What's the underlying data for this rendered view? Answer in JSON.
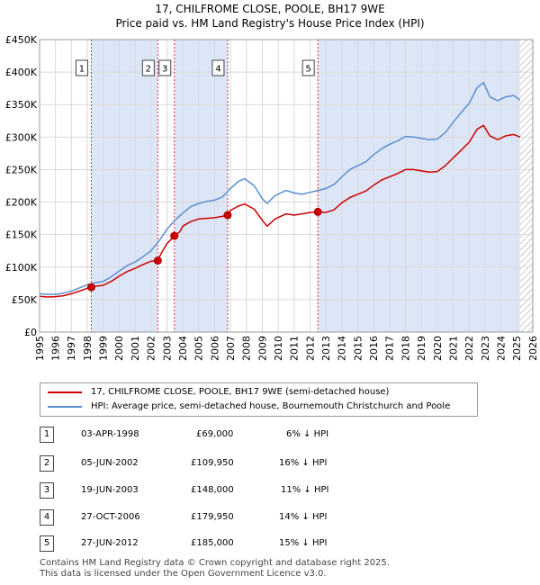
{
  "title_line1": "17, CHILFROME CLOSE, POOLE, BH17 9WE",
  "title_line2": "Price paid vs. HM Land Registry's House Price Index (HPI)",
  "legend": {
    "property_label": "17, CHILFROME CLOSE, POOLE, BH17 9WE (semi-detached house)",
    "hpi_label": "HPI: Average price, semi-detached house, Bournemouth Christchurch and Poole"
  },
  "colors": {
    "property": "#cc0000",
    "hpi": "#5b8fd1",
    "shade": "#dde6f7",
    "marker": "#cc0000",
    "vline": "#dd3333"
  },
  "sales": [
    {
      "num": "1",
      "date": "03-APR-1998",
      "price": "£69,000",
      "hpi_diff": "6% ↓ HPI"
    },
    {
      "num": "2",
      "date": "05-JUN-2002",
      "price": "£109,950",
      "hpi_diff": "16% ↓ HPI"
    },
    {
      "num": "3",
      "date": "19-JUN-2003",
      "price": "£148,000",
      "hpi_diff": "11% ↓ HPI"
    },
    {
      "num": "4",
      "date": "27-OCT-2006",
      "price": "£179,950",
      "hpi_diff": "14% ↓ HPI"
    },
    {
      "num": "5",
      "date": "27-JUN-2012",
      "price": "£185,000",
      "hpi_diff": "15% ↓ HPI"
    }
  ],
  "footer_line1": "Contains HM Land Registry data © Crown copyright and database right 2025.",
  "footer_line2": "This data is licensed under the Open Government Licence v3.0.",
  "chart_data": {
    "type": "line",
    "title": "17, CHILFROME CLOSE, POOLE, BH17 9WE — Price paid vs. HM Land Registry's House Price Index (HPI)",
    "xlabel": "",
    "ylabel": "",
    "xlim": [
      1995,
      2026
    ],
    "ylim": [
      0,
      450000
    ],
    "x_ticks": [
      1995,
      1996,
      1997,
      1998,
      1999,
      2000,
      2001,
      2002,
      2003,
      2004,
      2005,
      2006,
      2007,
      2008,
      2009,
      2010,
      2011,
      2012,
      2013,
      2014,
      2015,
      2016,
      2017,
      2018,
      2019,
      2020,
      2021,
      2022,
      2023,
      2024,
      2025,
      2026
    ],
    "y_ticks": [
      0,
      50000,
      100000,
      150000,
      200000,
      250000,
      300000,
      350000,
      400000,
      450000
    ],
    "y_tick_labels": [
      "£0",
      "£50K",
      "£100K",
      "£150K",
      "£200K",
      "£250K",
      "£300K",
      "£350K",
      "£400K",
      "£450K"
    ],
    "grid": true,
    "shaded_ranges": [
      [
        1998.25,
        2002.43
      ],
      [
        2003.47,
        2006.82
      ],
      [
        2012.49,
        2025.2
      ]
    ],
    "hatched_from": 2025.2,
    "series": [
      {
        "name": "HPI: Average price, semi-detached house, Bournemouth Christchurch and Poole",
        "points": [
          [
            1995.0,
            59000
          ],
          [
            1995.5,
            58000
          ],
          [
            1996.0,
            58000
          ],
          [
            1996.5,
            60000
          ],
          [
            1997.0,
            63000
          ],
          [
            1997.5,
            68000
          ],
          [
            1998.0,
            73000
          ],
          [
            1998.5,
            76000
          ],
          [
            1999.0,
            78000
          ],
          [
            1999.5,
            85000
          ],
          [
            2000.0,
            94000
          ],
          [
            2000.5,
            102000
          ],
          [
            2001.0,
            108000
          ],
          [
            2001.5,
            116000
          ],
          [
            2002.0,
            125000
          ],
          [
            2002.5,
            140000
          ],
          [
            2003.0,
            158000
          ],
          [
            2003.5,
            172000
          ],
          [
            2004.0,
            183000
          ],
          [
            2004.5,
            193000
          ],
          [
            2005.0,
            198000
          ],
          [
            2005.5,
            201000
          ],
          [
            2006.0,
            203000
          ],
          [
            2006.5,
            208000
          ],
          [
            2007.0,
            221000
          ],
          [
            2007.5,
            232000
          ],
          [
            2007.9,
            236000
          ],
          [
            2008.5,
            225000
          ],
          [
            2009.0,
            205000
          ],
          [
            2009.3,
            198000
          ],
          [
            2009.8,
            210000
          ],
          [
            2010.5,
            218000
          ],
          [
            2011.0,
            214000
          ],
          [
            2011.5,
            212000
          ],
          [
            2012.0,
            215000
          ],
          [
            2012.5,
            218000
          ],
          [
            2013.0,
            221000
          ],
          [
            2013.5,
            227000
          ],
          [
            2014.0,
            239000
          ],
          [
            2014.5,
            250000
          ],
          [
            2015.0,
            256000
          ],
          [
            2015.5,
            262000
          ],
          [
            2016.0,
            273000
          ],
          [
            2016.5,
            282000
          ],
          [
            2017.0,
            289000
          ],
          [
            2017.5,
            294000
          ],
          [
            2018.0,
            301000
          ],
          [
            2018.5,
            300000
          ],
          [
            2019.0,
            298000
          ],
          [
            2019.5,
            296000
          ],
          [
            2020.0,
            297000
          ],
          [
            2020.5,
            307000
          ],
          [
            2021.0,
            323000
          ],
          [
            2021.5,
            338000
          ],
          [
            2022.0,
            352000
          ],
          [
            2022.5,
            376000
          ],
          [
            2022.9,
            384000
          ],
          [
            2023.3,
            362000
          ],
          [
            2023.8,
            356000
          ],
          [
            2024.3,
            362000
          ],
          [
            2024.8,
            364000
          ],
          [
            2025.2,
            357000
          ]
        ]
      },
      {
        "name": "17, CHILFROME CLOSE, POOLE, BH17 9WE (semi-detached house)",
        "points": [
          [
            1995.0,
            55000
          ],
          [
            1995.5,
            54000
          ],
          [
            1996.0,
            54500
          ],
          [
            1996.5,
            56000
          ],
          [
            1997.0,
            59000
          ],
          [
            1997.5,
            63000
          ],
          [
            1998.0,
            67500
          ],
          [
            1998.25,
            69000
          ],
          [
            1998.5,
            70500
          ],
          [
            1999.0,
            72000
          ],
          [
            1999.5,
            78000
          ],
          [
            2000.0,
            86000
          ],
          [
            2000.5,
            93000
          ],
          [
            2001.0,
            98000
          ],
          [
            2001.5,
            104000
          ],
          [
            2002.0,
            109000
          ],
          [
            2002.43,
            109950
          ],
          [
            2002.6,
            119000
          ],
          [
            2003.0,
            136000
          ],
          [
            2003.47,
            148000
          ],
          [
            2003.8,
            154000
          ],
          [
            2004.0,
            163000
          ],
          [
            2004.5,
            170000
          ],
          [
            2005.0,
            174000
          ],
          [
            2005.5,
            175000
          ],
          [
            2006.0,
            176000
          ],
          [
            2006.5,
            178000
          ],
          [
            2006.82,
            179950
          ],
          [
            2007.0,
            187000
          ],
          [
            2007.5,
            194000
          ],
          [
            2007.9,
            197000
          ],
          [
            2008.5,
            189000
          ],
          [
            2009.0,
            172000
          ],
          [
            2009.3,
            163000
          ],
          [
            2009.8,
            174000
          ],
          [
            2010.5,
            182000
          ],
          [
            2011.0,
            180000
          ],
          [
            2011.5,
            182000
          ],
          [
            2012.0,
            184000
          ],
          [
            2012.49,
            185000
          ],
          [
            2013.0,
            184000
          ],
          [
            2013.5,
            188000
          ],
          [
            2014.0,
            199000
          ],
          [
            2014.5,
            207000
          ],
          [
            2015.0,
            212000
          ],
          [
            2015.5,
            217000
          ],
          [
            2016.0,
            226000
          ],
          [
            2016.5,
            234000
          ],
          [
            2017.0,
            239000
          ],
          [
            2017.5,
            244000
          ],
          [
            2018.0,
            250000
          ],
          [
            2018.5,
            250000
          ],
          [
            2019.0,
            248000
          ],
          [
            2019.5,
            246000
          ],
          [
            2020.0,
            247000
          ],
          [
            2020.5,
            256000
          ],
          [
            2021.0,
            268000
          ],
          [
            2021.5,
            280000
          ],
          [
            2022.0,
            292000
          ],
          [
            2022.5,
            312000
          ],
          [
            2022.9,
            318000
          ],
          [
            2023.3,
            302000
          ],
          [
            2023.8,
            296000
          ],
          [
            2024.3,
            302000
          ],
          [
            2024.8,
            304000
          ],
          [
            2025.2,
            300000
          ]
        ]
      }
    ],
    "sale_markers": [
      {
        "label": "1",
        "x": 1998.25,
        "y": 69000
      },
      {
        "label": "2",
        "x": 2002.43,
        "y": 109950
      },
      {
        "label": "3",
        "x": 2003.47,
        "y": 148000
      },
      {
        "label": "4",
        "x": 2006.82,
        "y": 179950
      },
      {
        "label": "5",
        "x": 2012.49,
        "y": 185000
      }
    ]
  }
}
